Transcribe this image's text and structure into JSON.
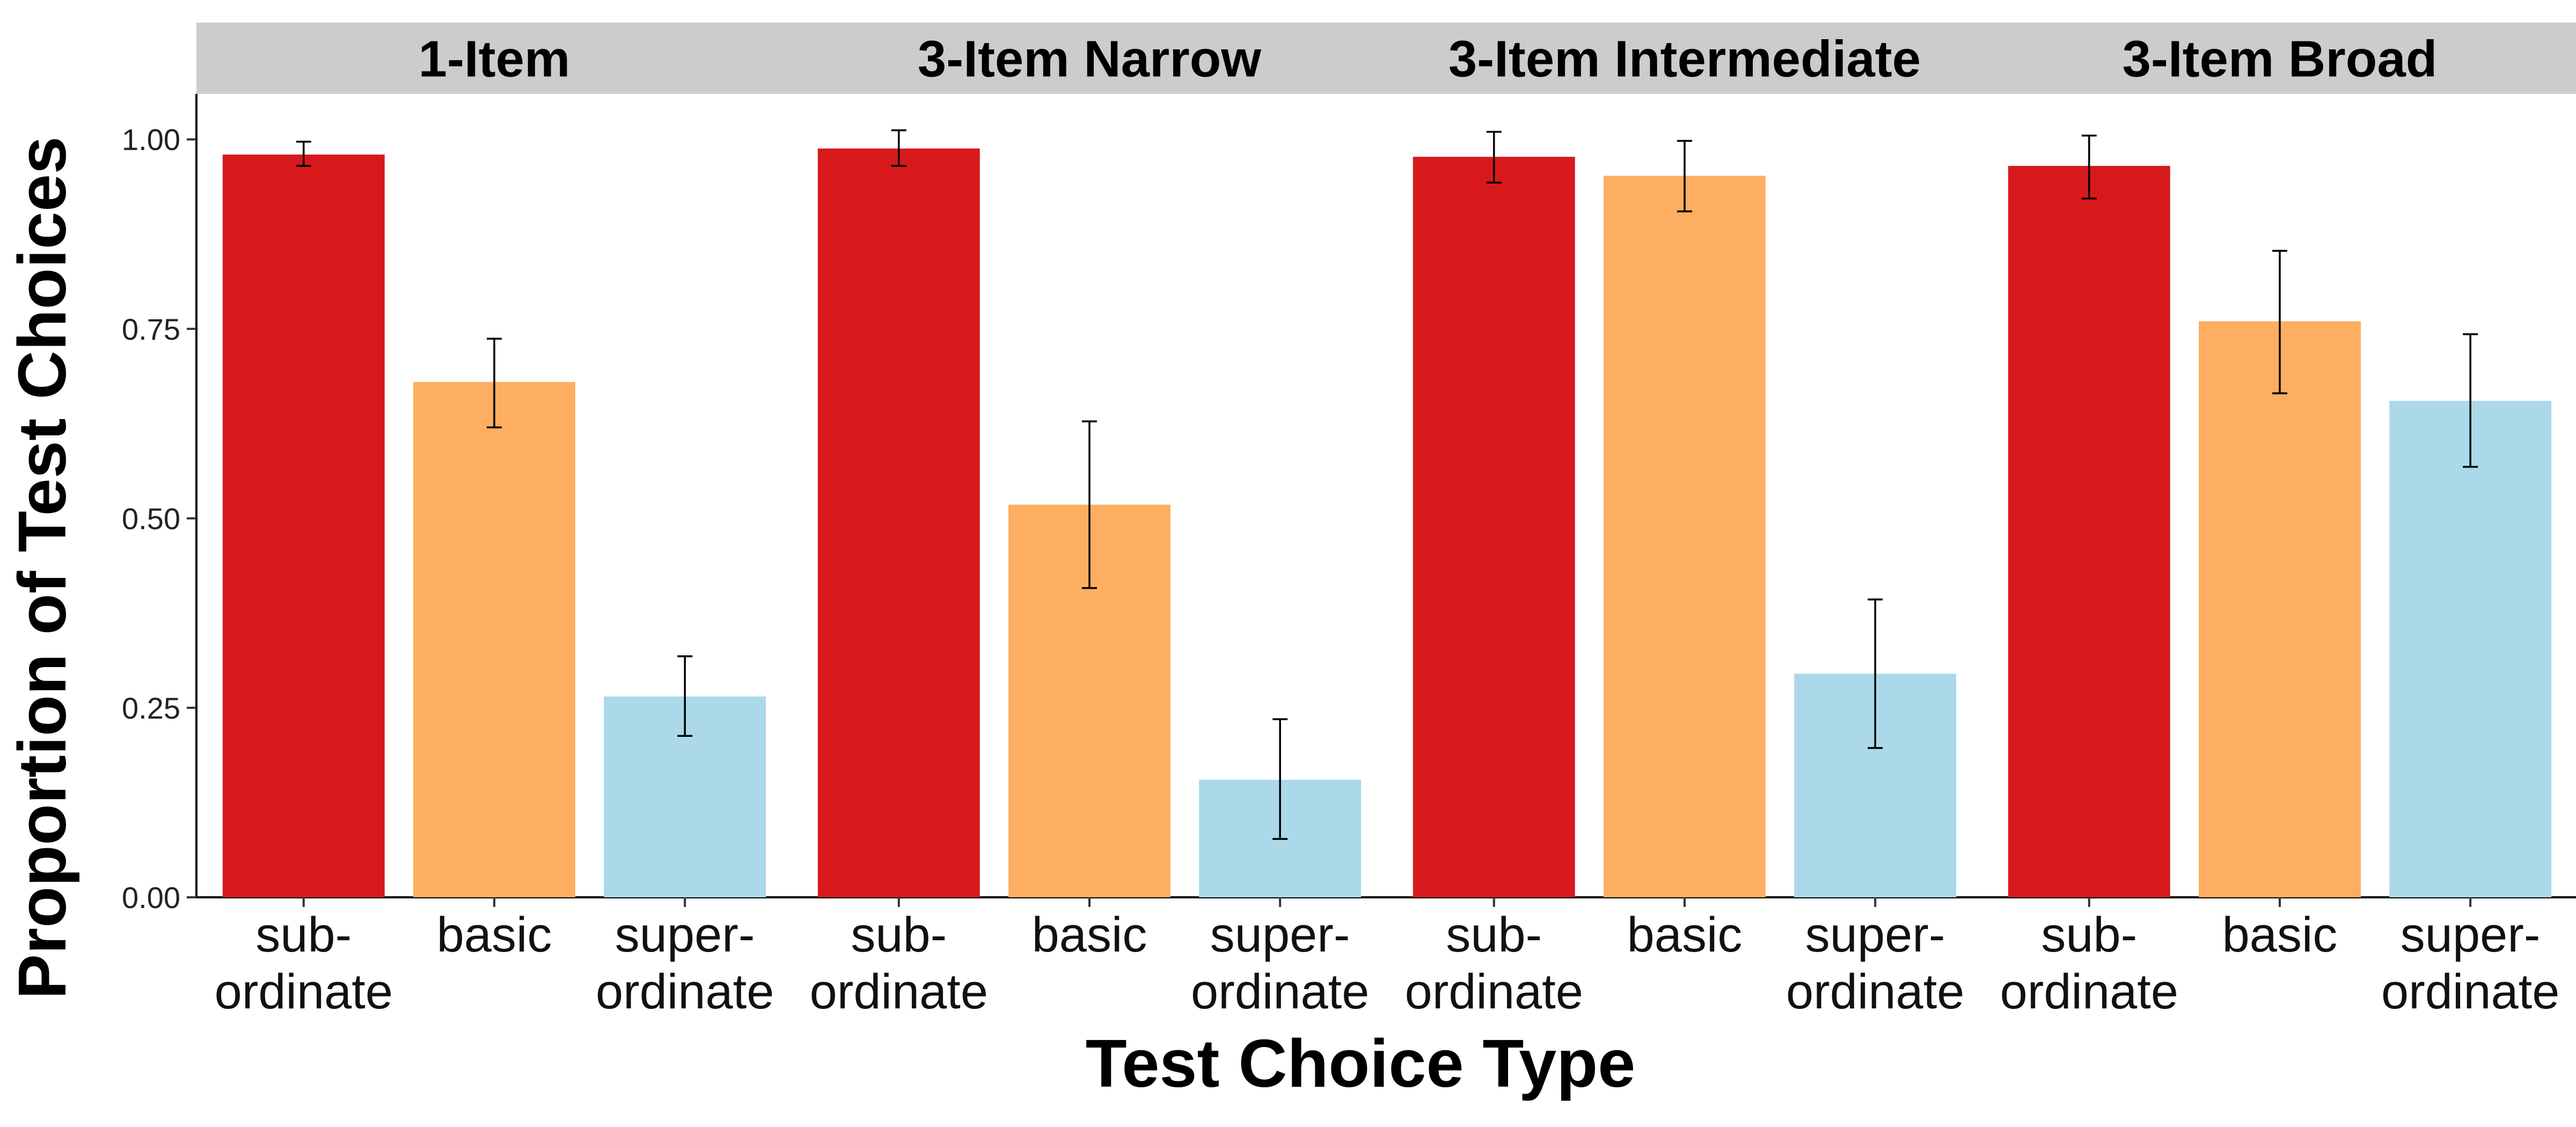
{
  "chart_data": {
    "type": "bar",
    "ylabel": "Proportion of Test Choices",
    "xlabel": "Test Choice Type",
    "ylim": [
      0,
      1.06
    ],
    "yticks": [
      0,
      0.25,
      0.5,
      0.75,
      1.0
    ],
    "ytick_labels": [
      "0.00",
      "0.25",
      "0.50",
      "0.75",
      "1.00"
    ],
    "grid": false,
    "legend": "none",
    "categories": [
      {
        "lines": [
          "sub-",
          "ordinate"
        ],
        "color": "#d7191c"
      },
      {
        "lines": [
          "basic"
        ],
        "color": "#fdae61"
      },
      {
        "lines": [
          "super-",
          "ordinate"
        ],
        "color": "#abd9e9"
      }
    ],
    "panels": [
      {
        "title": "1-Item",
        "values": [
          0.98,
          0.68,
          0.265
        ],
        "err_low": [
          0.965,
          0.62,
          0.213
        ],
        "err_high": [
          0.997,
          0.737,
          0.318
        ]
      },
      {
        "title": "3-Item Narrow",
        "values": [
          0.988,
          0.518,
          0.155
        ],
        "err_low": [
          0.965,
          0.408,
          0.077
        ],
        "err_high": [
          1.012,
          0.628,
          0.235
        ]
      },
      {
        "title": "3-Item Intermediate",
        "values": [
          0.977,
          0.952,
          0.295
        ],
        "err_low": [
          0.943,
          0.905,
          0.197
        ],
        "err_high": [
          1.01,
          0.998,
          0.393
        ]
      },
      {
        "title": "3-Item Broad",
        "values": [
          0.965,
          0.76,
          0.655
        ],
        "err_low": [
          0.922,
          0.665,
          0.568
        ],
        "err_high": [
          1.005,
          0.853,
          0.743
        ]
      }
    ]
  }
}
